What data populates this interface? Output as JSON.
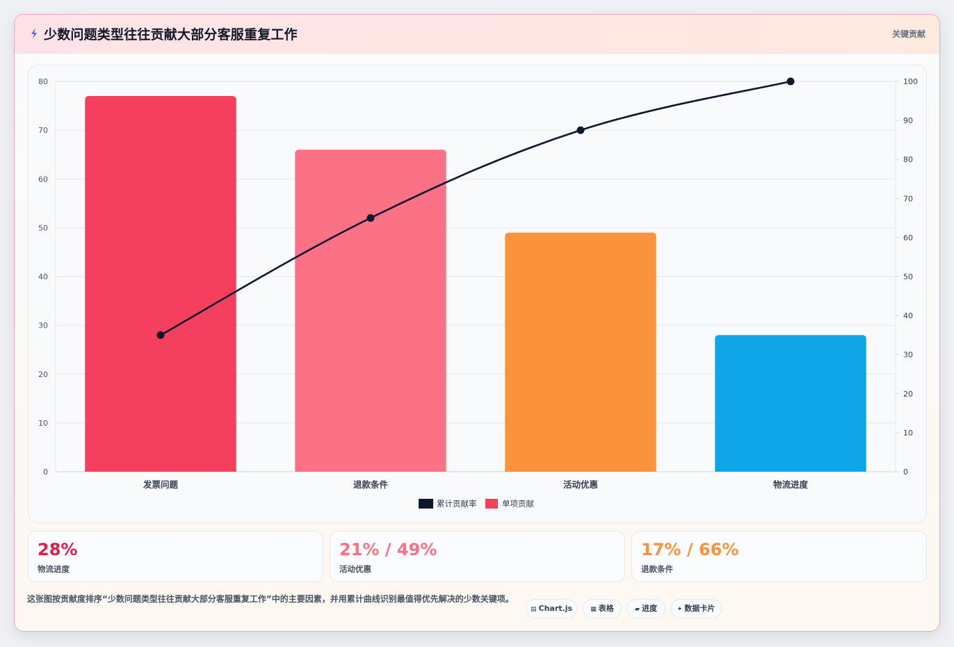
{
  "header": {
    "title": "少数问题类型往往贡献大部分客服重复工作",
    "tag": "关键贡献"
  },
  "chart_data": {
    "type": "bar",
    "categories": [
      "发票问题",
      "退款条件",
      "活动优惠",
      "物流进度"
    ],
    "series": [
      {
        "name": "单项贡献",
        "kind": "bar",
        "axis": "left",
        "values": [
          77,
          66,
          49,
          28
        ]
      },
      {
        "name": "累计贡献率",
        "kind": "line",
        "axis": "right",
        "values": [
          35,
          65,
          87.5,
          100
        ]
      }
    ],
    "bar_colors": [
      "#f43f5e",
      "#fb7185",
      "#fb923c",
      "#0ea5e9"
    ],
    "line_color": "#0f172a",
    "ylim_left": [
      0,
      80
    ],
    "yticks_left": [
      0,
      10,
      20,
      30,
      40,
      50,
      60,
      70,
      80
    ],
    "ylim_right": [
      0,
      100
    ],
    "yticks_right": [
      0,
      10,
      20,
      30,
      40,
      50,
      60,
      70,
      80,
      90,
      100
    ],
    "grid": true,
    "legend": "bottom-center"
  },
  "stats": [
    {
      "value": "28%",
      "label": "物流进度",
      "color": "#e11d48"
    },
    {
      "value": "21% / 49%",
      "label": "活动优惠",
      "color": "#fb7185"
    },
    {
      "value": "17% / 66%",
      "label": "退款条件",
      "color": "#fb923c"
    }
  ],
  "note": "这张图按贡献度排序“少数问题类型往往贡献大部分客服重复工作”中的主要因素，并用累计曲线识别最值得优先解决的少数关键项。",
  "chips": [
    {
      "icon": "▤",
      "label": "Chart.js"
    },
    {
      "icon": "▦",
      "label": "表格"
    },
    {
      "icon": "▰",
      "label": "进度"
    },
    {
      "icon": "✦",
      "label": "数据卡片"
    }
  ]
}
